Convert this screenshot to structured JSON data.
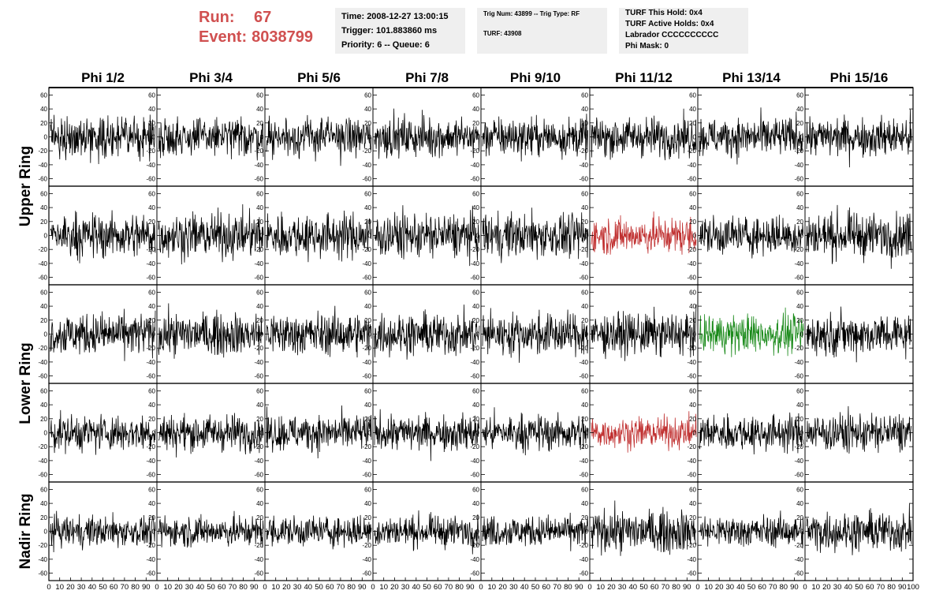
{
  "run_label": "Run:",
  "run_value": "67",
  "event_label": "Event:",
  "event_value": "8038799",
  "info_time": "Time: 2008-12-27 13:00:15",
  "info_trigger": "Trigger: 101.883860 ms",
  "info_priority": "Priority: 6 -- Queue: 6",
  "info_trig": "Trig Num: 43899 -- Trig Type: RF",
  "info_turf": "TURF: 43908",
  "info_hold": "TURF This Hold: 0x4",
  "info_active": "TURF Active Holds: 0x4",
  "info_labrador": "Labrador CCCCCCCCCC",
  "info_mask": "Phi Mask: 0",
  "colors": {
    "trace": "#000000",
    "highlight_red": "#c03030",
    "highlight_green": "#1a8a1a",
    "title_red": "#d05050",
    "info_bg": "#efefef"
  },
  "chart_data": {
    "type": "line",
    "column_labels": [
      "Phi 1/2",
      "Phi 3/4",
      "Phi 5/6",
      "Phi 7/8",
      "Phi 9/10",
      "Phi 11/12",
      "Phi 13/14",
      "Phi 15/16"
    ],
    "ring_labels": [
      "Upper Ring",
      "Lower Ring",
      "Nadir Ring"
    ],
    "rows": 5,
    "ylim": [
      -65,
      65
    ],
    "y_ticks": [
      -60,
      -40,
      -20,
      0,
      20,
      40,
      60
    ],
    "xlim": [
      0,
      100
    ],
    "x_tick_labels": [
      "0",
      "10",
      "20",
      "30",
      "40",
      "50",
      "60",
      "70",
      "80",
      "90",
      "100"
    ],
    "samples_per_trace": 260,
    "trace_amplitude": [
      [
        14,
        14,
        14,
        14,
        14,
        14,
        14,
        14
      ],
      [
        16,
        16,
        16,
        16,
        16,
        13,
        14,
        16
      ],
      [
        15,
        15,
        15,
        15,
        15,
        15,
        14,
        15
      ],
      [
        13,
        13,
        13,
        13,
        13,
        11,
        13,
        14
      ],
      [
        11,
        11,
        11,
        11,
        11,
        15,
        11,
        14
      ]
    ],
    "highlighted": [
      {
        "row": 1,
        "col": 5,
        "color": "red"
      },
      {
        "row": 3,
        "col": 5,
        "color": "red"
      },
      {
        "row": 2,
        "col": 6,
        "color": "green"
      }
    ]
  }
}
